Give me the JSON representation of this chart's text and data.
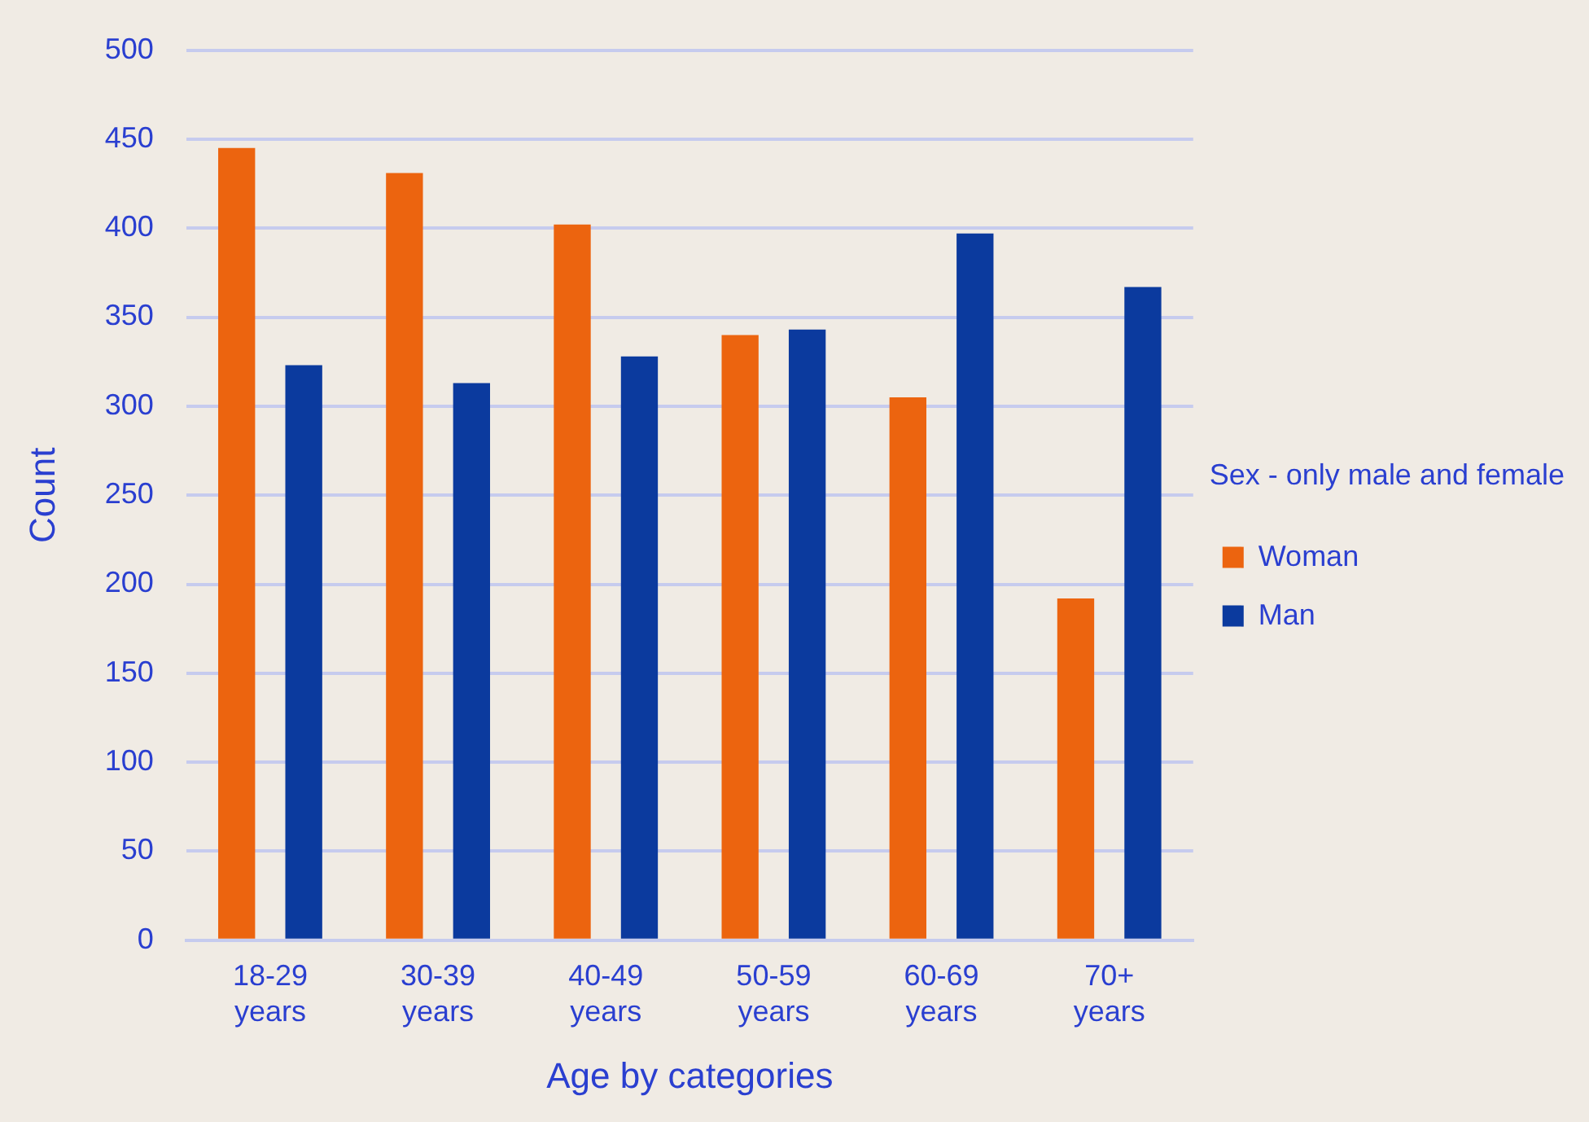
{
  "chart_data": {
    "type": "bar",
    "xlabel": "Age by categories",
    "ylabel": "Count",
    "legend_title": "Sex - only male and female",
    "categories": [
      "18-29 years",
      "30-39 years",
      "40-49 years",
      "50-59 years",
      "60-69 years",
      "70+ years"
    ],
    "series": [
      {
        "name": "Woman",
        "color": "#ec640f",
        "values": [
          445,
          431,
          402,
          340,
          305,
          192
        ]
      },
      {
        "name": "Man",
        "color": "#0b3a9e",
        "values": [
          323,
          313,
          328,
          343,
          397,
          367
        ]
      }
    ],
    "ylim": [
      0,
      500
    ],
    "yticks": [
      0,
      50,
      100,
      150,
      200,
      250,
      300,
      350,
      400,
      450,
      500
    ],
    "grid": "y",
    "legend": "right"
  }
}
